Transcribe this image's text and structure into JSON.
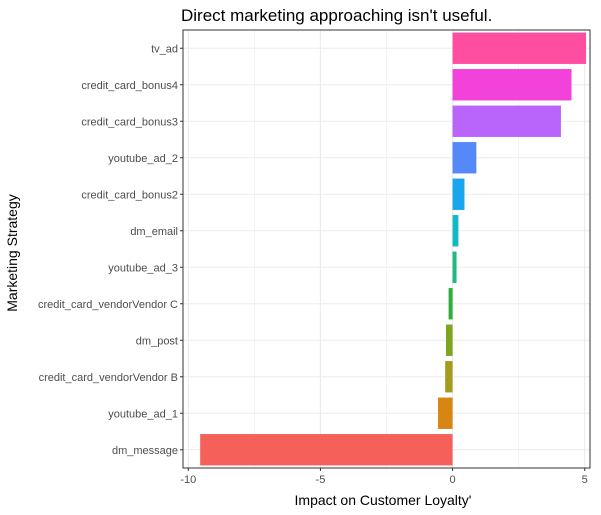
{
  "chart_data": {
    "type": "bar",
    "orientation": "horizontal",
    "title": "Direct marketing approaching isn't useful.",
    "xlabel": "Impact on Customer Loyalty'",
    "ylabel": "Marketing Strategy",
    "xlim": [
      -10.2,
      5.2
    ],
    "xticks": [
      -10,
      -5,
      0,
      5
    ],
    "grid": true,
    "legend": "none",
    "categories": [
      "tv_ad",
      "credit_card_bonus4",
      "credit_card_bonus3",
      "youtube_ad_2",
      "credit_card_bonus2",
      "dm_email",
      "youtube_ad_3",
      "credit_card_vendorVendor C",
      "dm_post",
      "credit_card_vendorVendor B",
      "youtube_ad_1",
      "dm_message"
    ],
    "values": [
      5.05,
      4.5,
      4.1,
      0.9,
      0.45,
      0.22,
      0.15,
      -0.15,
      -0.25,
      -0.28,
      -0.55,
      -9.55
    ],
    "colors": [
      "#FF4EA1",
      "#F242DA",
      "#B964FB",
      "#5589FA",
      "#1AA6EC",
      "#11B9C5",
      "#1DBA81",
      "#2DAE38",
      "#7EA51D",
      "#A59B1C",
      "#D88612",
      "#F5605B"
    ]
  },
  "colors": {
    "grid": "#ebebeb",
    "panel_border": "#333333",
    "tick": "#333333"
  }
}
